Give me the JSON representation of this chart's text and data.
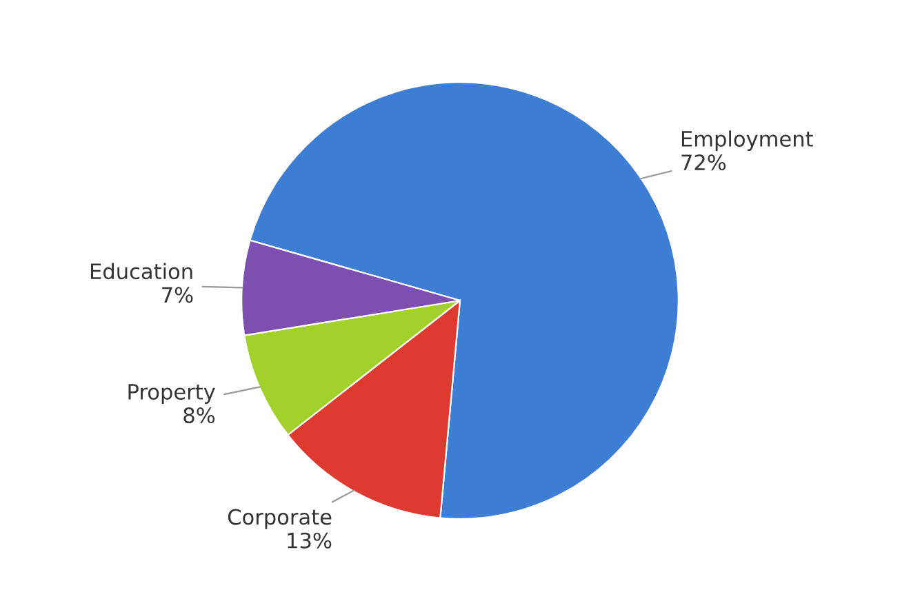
{
  "chart_data": {
    "type": "pie",
    "categories": [
      "Employment",
      "Corporate",
      "Property",
      "Education"
    ],
    "values": [
      72,
      13,
      8,
      7
    ],
    "value_labels": [
      "72%",
      "13%",
      "8%",
      "7%"
    ],
    "colors": [
      "#3e7dd4",
      "#de3a30",
      "#a3d12b",
      "#7c4fb0"
    ]
  }
}
